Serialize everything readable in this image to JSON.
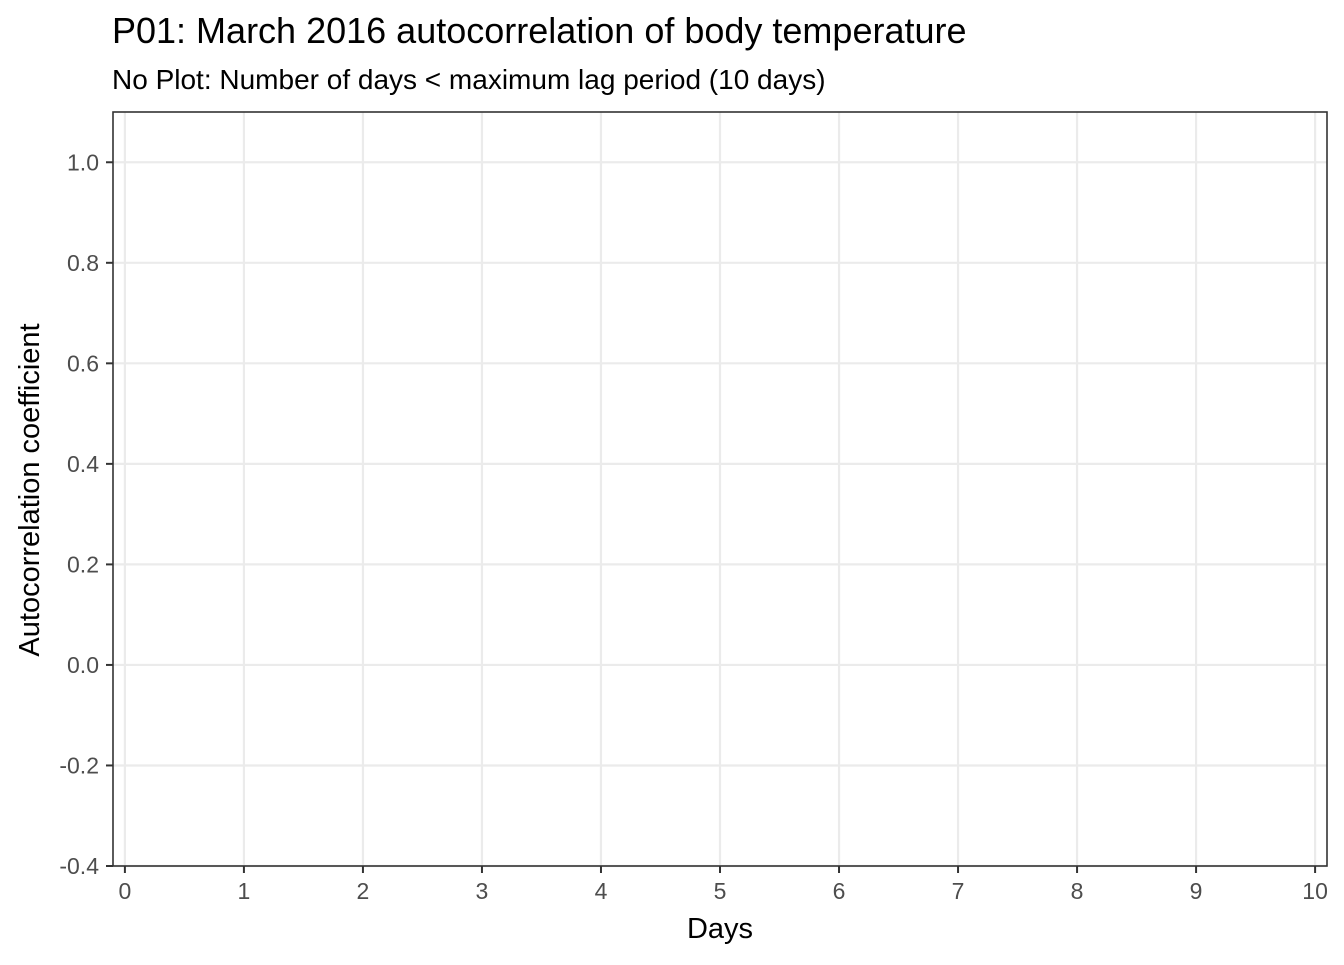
{
  "chart_data": {
    "type": "bar",
    "title": "P01: March 2016 autocorrelation of body temperature",
    "subtitle": "No Plot: Number of days < maximum lag period (10 days)",
    "xlabel": "Days",
    "ylabel": "Autocorrelation coefficient",
    "xlim": [
      -0.1,
      10.1
    ],
    "ylim": [
      -0.4,
      1.1
    ],
    "x_ticks": [
      0,
      1,
      2,
      3,
      4,
      5,
      6,
      7,
      8,
      9,
      10
    ],
    "x_tick_labels": [
      "0",
      "1",
      "2",
      "3",
      "4",
      "5",
      "6",
      "7",
      "8",
      "9",
      "10"
    ],
    "y_ticks": [
      -0.4,
      -0.2,
      0.0,
      0.2,
      0.4,
      0.6,
      0.8,
      1.0
    ],
    "y_tick_labels": [
      "-0.4",
      "-0.2",
      "0.0",
      "0.2",
      "0.4",
      "0.6",
      "0.8",
      "1.0"
    ],
    "series": [],
    "grid": true,
    "background": "#ffffff",
    "gridline_color": "#ebebeb",
    "axis_line_color": "#333333",
    "tick_label_color": "#4d4d4d"
  }
}
